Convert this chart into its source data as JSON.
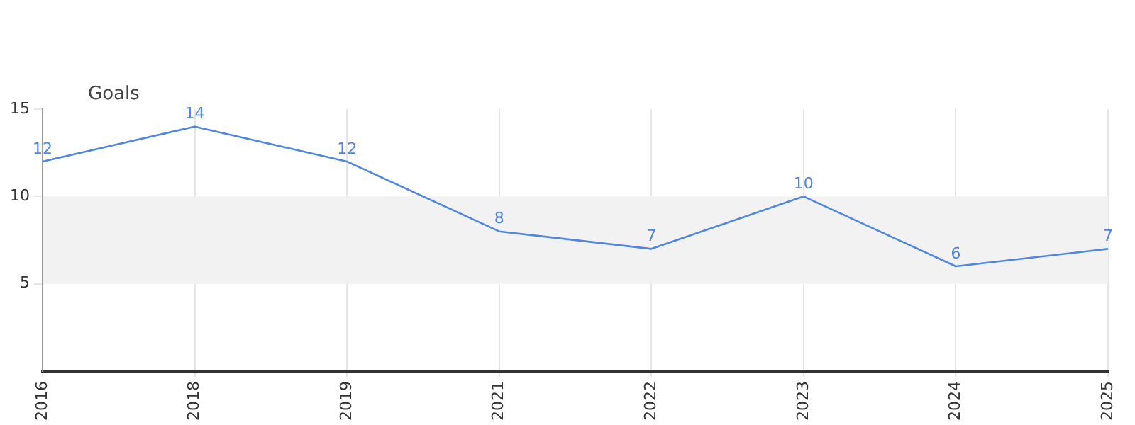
{
  "chart_data": {
    "type": "line",
    "ylabel": "Goals",
    "categories": [
      "2016",
      "2018",
      "2019",
      "2021",
      "2022",
      "2023",
      "2024",
      "2025"
    ],
    "series": [
      {
        "color": "#4f86e0",
        "values": [
          12,
          14,
          12,
          8,
          7,
          10,
          6,
          7
        ]
      }
    ],
    "ylim": [
      0,
      15
    ],
    "yticks": [
      5,
      10,
      15
    ],
    "grid": "x",
    "data_labels": true,
    "marker": "none",
    "line_style": "solid",
    "legend": false,
    "bands": [
      {
        "axis": "y",
        "from": 5,
        "to": 10,
        "color": "#f2f2f2"
      }
    ]
  }
}
